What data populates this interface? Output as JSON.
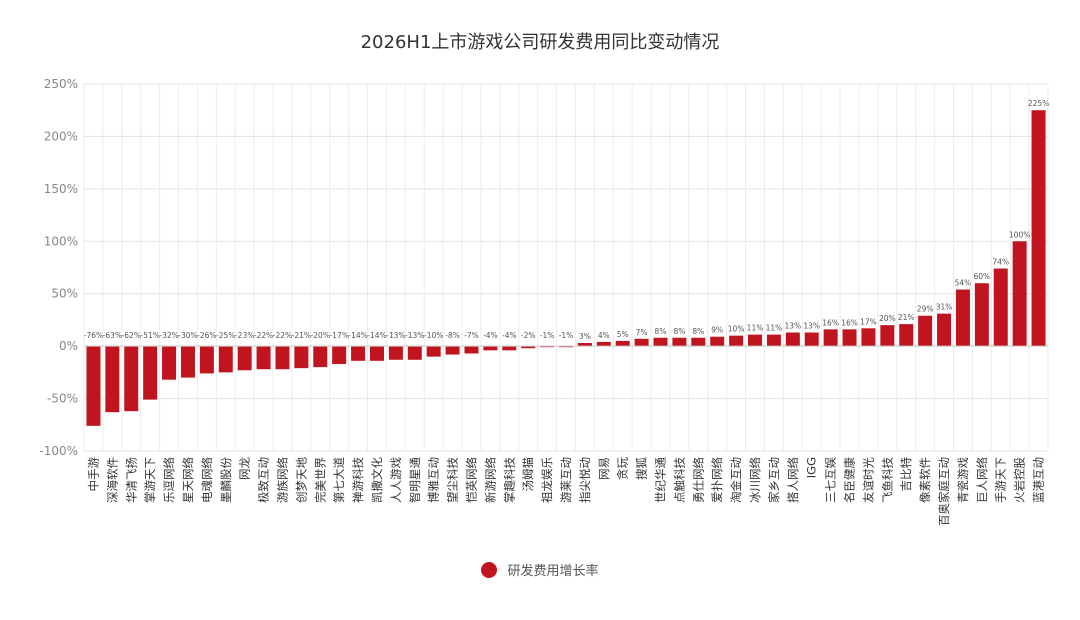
{
  "chart_data": {
    "type": "bar",
    "title": "2026H1上市游戏公司研发费用同比变动情况",
    "xlabel": "",
    "ylabel": "",
    "ylim": [
      -100,
      250
    ],
    "yticks": [
      -100,
      -50,
      0,
      50,
      100,
      150,
      200,
      250
    ],
    "ytick_labels": [
      "-100%",
      "-50%",
      "0%",
      "50%",
      "100%",
      "150%",
      "200%",
      "250%"
    ],
    "grid": true,
    "legend_position": "bottom",
    "color": "#c0141e",
    "categories": [
      "中手游",
      "深海软件",
      "华清飞扬",
      "掌游天下",
      "乐逗网络",
      "星天网络",
      "电魂网络",
      "墨麟股份",
      "网龙",
      "极致互动",
      "游族网络",
      "创梦天地",
      "完美世界",
      "第七大道",
      "禅游科技",
      "凯撒文化",
      "人人游戏",
      "智明星通",
      "博雅互动",
      "望尘科技",
      "恺英网络",
      "新游网络",
      "掌趣科技",
      "汤姆猫",
      "祖龙娱乐",
      "游莱互动",
      "指尖悦动",
      "网易",
      "贪玩",
      "搜狐",
      "世纪华通",
      "点触科技",
      "勇仕网络",
      "爱扑网络",
      "淘金互动",
      "冰川网络",
      "家乡互动",
      "搭人网络",
      "IGG",
      "三七互娱",
      "名臣健康",
      "友谊时光",
      "飞鱼科技",
      "吉比特",
      "像素软件",
      "百奥家庭互动",
      "青瓷游戏",
      "巨人网络",
      "手游天下",
      "火岩控股",
      "蓝港互动"
    ],
    "series": [
      {
        "name": "研发费用增长率",
        "values": [
          -76,
          -63,
          -62,
          -51,
          -32,
          -30,
          -26,
          -25,
          -23,
          -22,
          -22,
          -21,
          -20,
          -17,
          -14,
          -14,
          -13,
          -13,
          -10,
          -8,
          -7,
          -4,
          -4,
          -2,
          -1,
          -1,
          3,
          4,
          5,
          7,
          8,
          8,
          8,
          9,
          10,
          11,
          11,
          13,
          13,
          16,
          16,
          17,
          20,
          21,
          29,
          31,
          54,
          60,
          74,
          100,
          225
        ],
        "value_labels": [
          "-76%",
          "-63%",
          "-62%",
          "-51%",
          "-32%",
          "-30%",
          "-26%",
          "-25%",
          "-23%",
          "-22%",
          "-22%",
          "-21%",
          "-20%",
          "-17%",
          "-14%",
          "-14%",
          "-13%",
          "-13%",
          "-10%",
          "-8%",
          "-7%",
          "-4%",
          "-4%",
          "-2%",
          "-1%",
          "-1%",
          "3%",
          "4%",
          "5%",
          "7%",
          "8%",
          "8%",
          "8%",
          "9%",
          "10%",
          "11%",
          "11%",
          "13%",
          "13%",
          "16%",
          "16%",
          "17%",
          "20%",
          "21%",
          "29%",
          "31%",
          "54%",
          "60%",
          "74%",
          "100%",
          "225%"
        ]
      }
    ]
  }
}
